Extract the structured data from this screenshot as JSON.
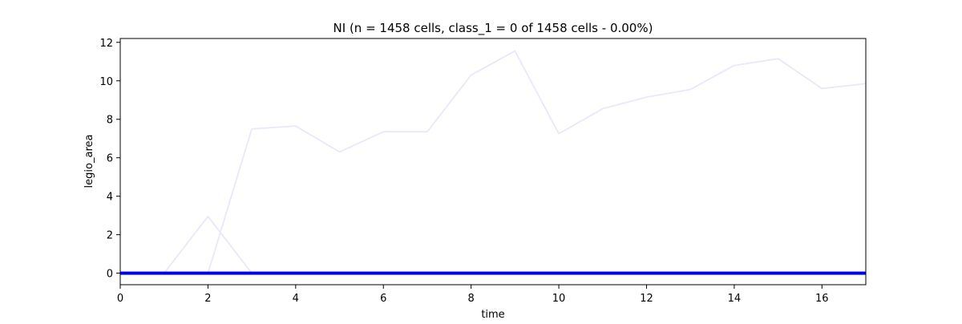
{
  "chart_data": {
    "type": "line",
    "title": "NI (n = 1458 cells, class_1 = 0 of 1458 cells - 0.00%)",
    "xlabel": "time",
    "ylabel": "legio_area",
    "xlim": [
      0,
      17
    ],
    "ylim": [
      -0.6,
      12.2
    ],
    "xticks": [
      0,
      2,
      4,
      6,
      8,
      10,
      12,
      14,
      16
    ],
    "yticks": [
      0,
      2,
      4,
      6,
      8,
      10,
      12
    ],
    "grid": false,
    "legend": "none",
    "series": [
      {
        "color": "#e8e8fa",
        "x": [
          0,
          1,
          2,
          3
        ],
        "y": [
          0,
          0,
          2.95,
          0
        ]
      },
      {
        "color": "#e8e8fa",
        "x": [
          0,
          1,
          2,
          3,
          4,
          5,
          6,
          7,
          8,
          9,
          10,
          11,
          12,
          13,
          14,
          15,
          16,
          17
        ],
        "y": [
          0,
          0,
          0,
          7.5,
          7.65,
          6.3,
          7.35,
          7.35,
          10.3,
          11.55,
          7.25,
          8.55,
          9.15,
          9.55,
          10.8,
          11.15,
          9.6,
          9.85
        ]
      },
      {
        "color": "#0000ff",
        "x": [
          0,
          1,
          2,
          3,
          4,
          5,
          6,
          7,
          8,
          9,
          10,
          11,
          12,
          13,
          14,
          15,
          16,
          17
        ],
        "y": [
          0,
          0,
          0,
          0,
          0,
          0,
          0,
          0,
          0,
          0,
          0,
          0,
          0,
          0,
          0,
          0,
          0,
          0
        ]
      }
    ]
  }
}
